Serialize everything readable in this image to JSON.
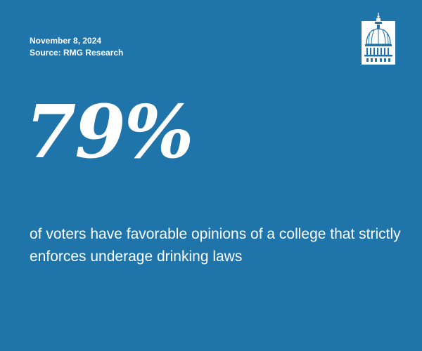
{
  "header": {
    "date": "November 8, 2024",
    "source": "Source: RMG Research"
  },
  "headline": {
    "stat": "79%"
  },
  "description": {
    "text": "of voters have favorable opinions of a college that strictly enforces underage drinking laws"
  },
  "logo": {
    "icon": "capitol-dome-icon"
  },
  "colors": {
    "background": "#1f74a9",
    "text": "#ffffff"
  }
}
